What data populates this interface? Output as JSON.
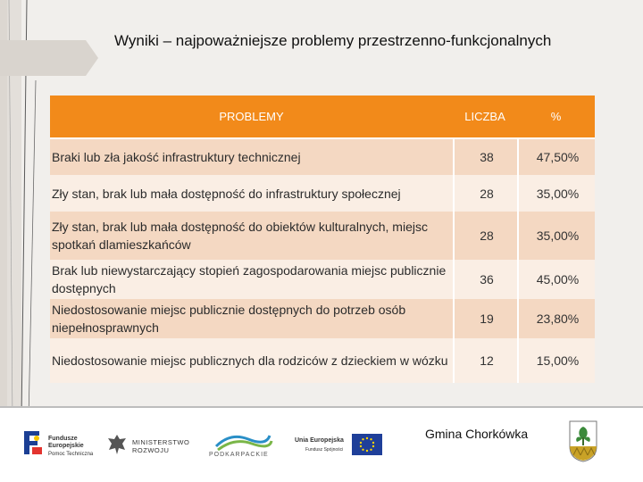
{
  "title": "Wyniki – najpoważniejsze problemy przestrzenno-funkcjonalnych",
  "table": {
    "headers": {
      "problem": "PROBLEMY",
      "count": "LICZBA",
      "pct": "%"
    },
    "rows": [
      {
        "problem": "Braki lub zła jakość infrastruktury technicznej",
        "count": "38",
        "pct": "47,50%"
      },
      {
        "problem": "Zły stan, brak lub mała dostępność do infrastruktury społecznej",
        "count": "28",
        "pct": "35,00%"
      },
      {
        "problem": "Zły stan, brak lub mała dostępność do obiektów kulturalnych, miejsc spotkań dlamieszkańców",
        "count": "28",
        "pct": "35,00%"
      },
      {
        "problem": "Brak lub niewystarczający stopień zagospodarowania miejsc publicznie dostępnych",
        "count": "36",
        "pct": "45,00%"
      },
      {
        "problem": "Niedostosowanie miejsc publicznie dostępnych do potrzeb osób niepełnosprawnych",
        "count": "19",
        "pct": "23,80%"
      },
      {
        "problem": "Niedostosowanie miejsc publicznych dla rodziców z dzieckiem w wózku",
        "count": "12",
        "pct": "15,00%"
      }
    ]
  },
  "footer": {
    "gmina": "Gmina Chorkówka",
    "logos": {
      "fe_line1": "Fundusze",
      "fe_line2": "Europejskie",
      "fe_line3": "Pomoc Techniczna",
      "min_line1": "MINISTERSTWO",
      "min_line2": "ROZWOJU",
      "podkarpackie": "PODKARPACKIE",
      "ue_line1": "Unia Europejska",
      "ue_line2": "Fundusz Spójności"
    }
  },
  "colors": {
    "header": "#f28a1a",
    "row_light": "#faeee4",
    "row_dark": "#f4d8c2"
  }
}
